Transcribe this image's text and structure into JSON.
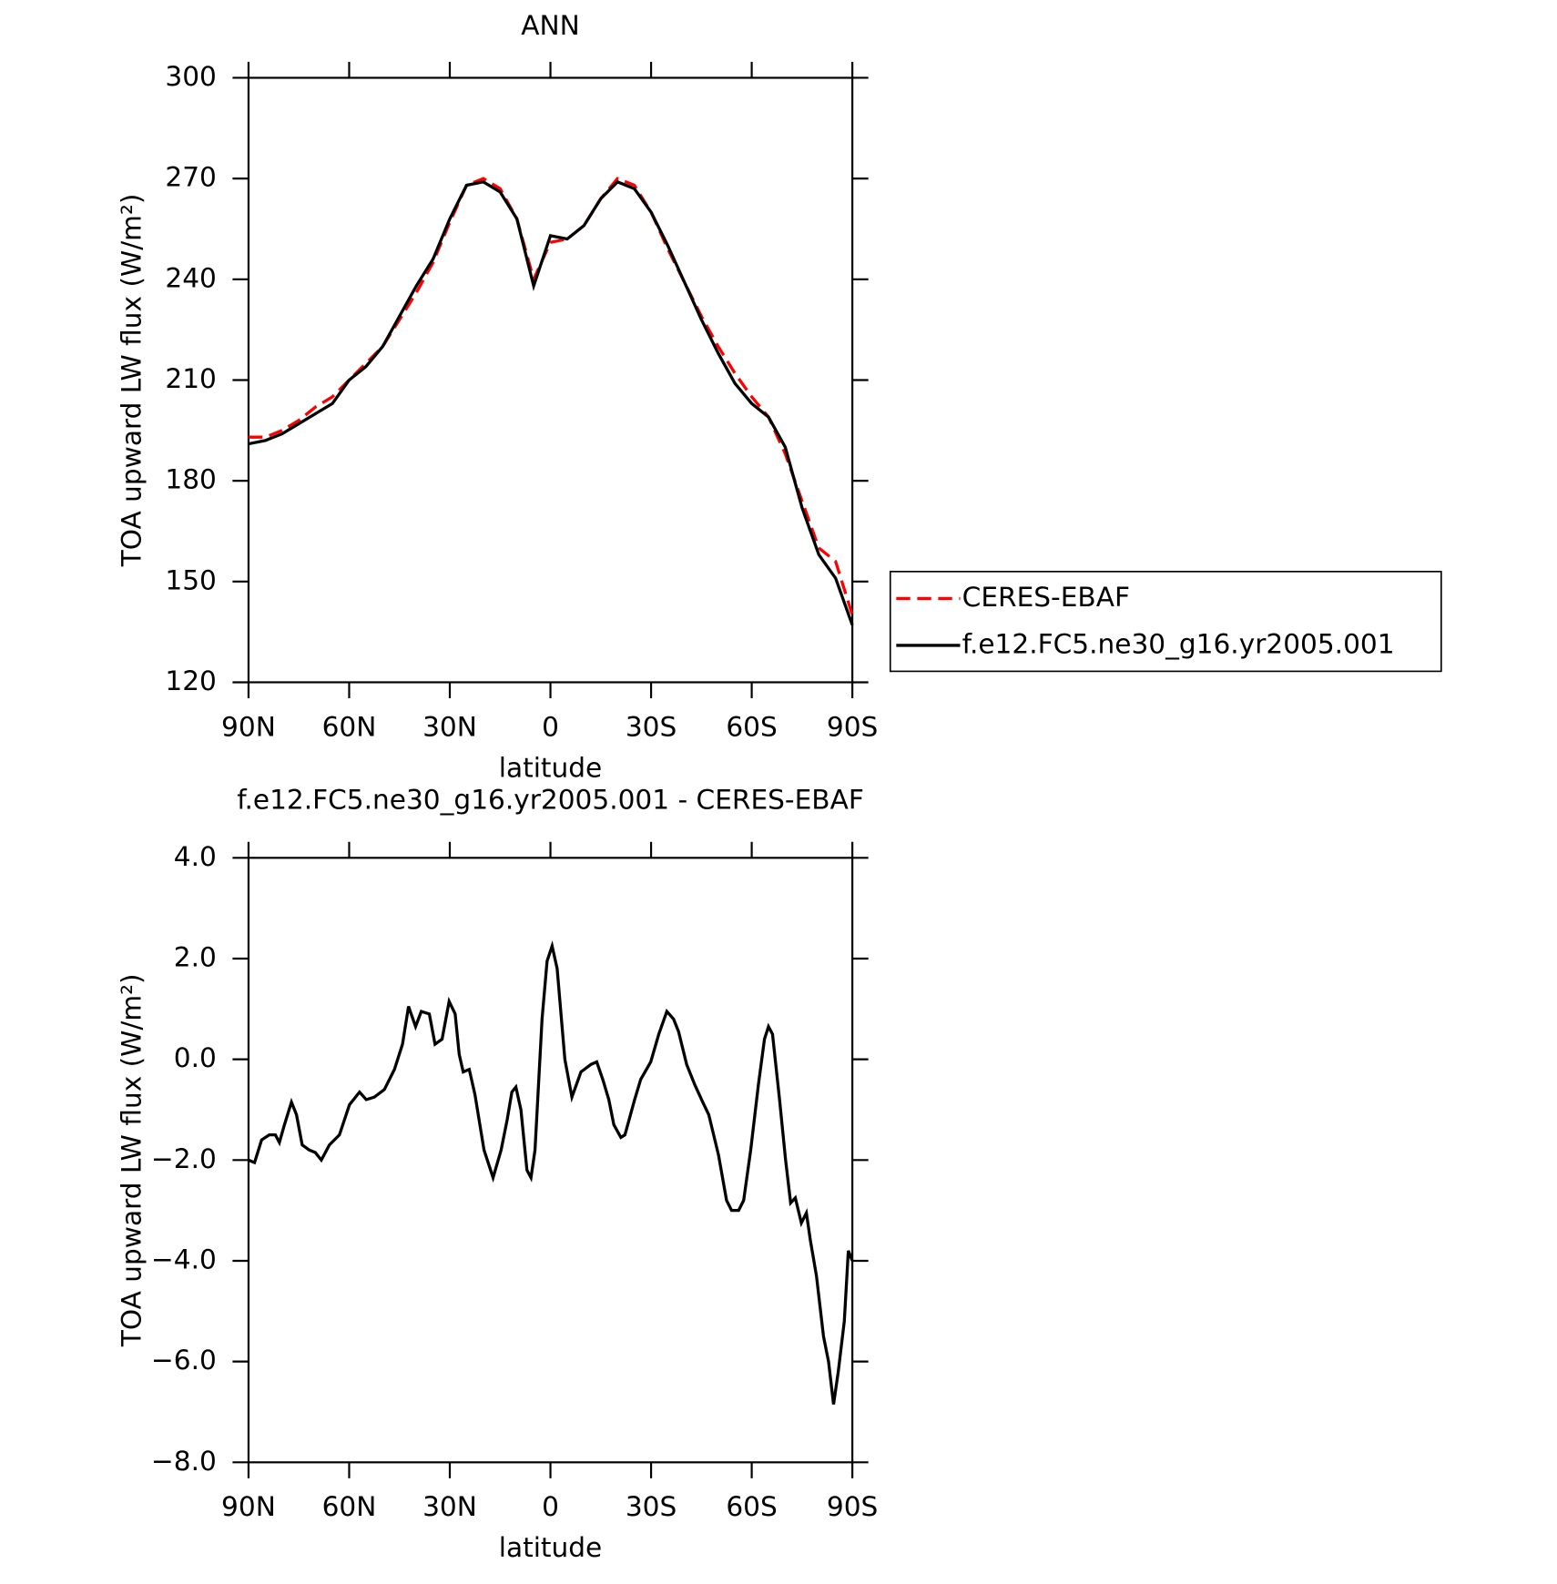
{
  "chart_data": [
    {
      "type": "line",
      "title": "ANN",
      "xlabel": "latitude",
      "ylabel": "TOA upward LW flux (W/m²)",
      "xlim": [
        90,
        -90
      ],
      "ylim": [
        120,
        300
      ],
      "xticks": [
        {
          "value": 90,
          "label": "90N"
        },
        {
          "value": 60,
          "label": "60N"
        },
        {
          "value": 30,
          "label": "30N"
        },
        0,
        {
          "value": -30,
          "label": "30S"
        },
        {
          "value": -60,
          "label": "60S"
        },
        {
          "value": -90,
          "label": "90S"
        }
      ],
      "yticks": [
        120,
        150,
        180,
        210,
        240,
        270,
        300
      ],
      "legend": "right",
      "x": [
        90,
        85,
        80,
        75,
        70,
        65,
        60,
        55,
        50,
        45,
        40,
        35,
        30,
        25,
        20,
        15,
        10,
        5,
        0,
        -5,
        -10,
        -15,
        -20,
        -25,
        -30,
        -35,
        -40,
        -45,
        -50,
        -55,
        -60,
        -65,
        -70,
        -75,
        -80,
        -85,
        -90
      ],
      "series": [
        {
          "name": "CERES-EBAF",
          "color": "#ff0000",
          "dashed": true,
          "values": [
            193,
            193,
            195,
            198,
            202,
            205,
            210,
            215,
            220,
            228,
            236,
            245,
            257,
            268,
            270,
            267,
            258,
            240,
            251,
            252,
            256,
            264,
            270,
            268,
            260,
            249,
            239,
            229,
            220,
            212,
            205,
            199,
            188,
            174,
            160,
            156,
            140
          ]
        },
        {
          "name": "f.e12.FC5.ne30_g16.yr2005.001",
          "color": "#000000",
          "dashed": false,
          "values": [
            191,
            192,
            194,
            197,
            200,
            203,
            210,
            214,
            220,
            229,
            238,
            246,
            258,
            268,
            269,
            266,
            258,
            238,
            253,
            252,
            256,
            264,
            269,
            267,
            260,
            250,
            239,
            228,
            218,
            209,
            203,
            199,
            190,
            172,
            158,
            151,
            137
          ]
        }
      ]
    },
    {
      "type": "line",
      "title": "f.e12.FC5.ne30_g16.yr2005.001 - CERES-EBAF",
      "xlabel": "latitude",
      "ylabel": "TOA upward LW flux (W/m²)",
      "xlim": [
        90,
        -90
      ],
      "ylim": [
        -8,
        4
      ],
      "xticks": [
        {
          "value": 90,
          "label": "90N"
        },
        {
          "value": 60,
          "label": "60N"
        },
        {
          "value": 30,
          "label": "30N"
        },
        0,
        {
          "value": -30,
          "label": "30S"
        },
        {
          "value": -60,
          "label": "60S"
        },
        {
          "value": -90,
          "label": "90S"
        }
      ],
      "yticks": [
        {
          "value": -8,
          "label": "−8.0"
        },
        {
          "value": -6,
          "label": "−6.0"
        },
        {
          "value": -4,
          "label": "−4.0"
        },
        {
          "value": -2,
          "label": "−2.0"
        },
        {
          "value": 0,
          "label": "0.0"
        },
        {
          "value": 2,
          "label": "2.0"
        },
        {
          "value": 4,
          "label": "4.0"
        }
      ],
      "x": [
        90,
        88.2,
        86.1,
        83.8,
        82.0,
        80.8,
        79.3,
        77.2,
        75.7,
        74.0,
        71.9,
        70.1,
        68.3,
        65.9,
        62.9,
        59.9,
        56.9,
        54.9,
        52.5,
        49.5,
        46.5,
        44.1,
        42.3,
        40.2,
        38.5,
        36.1,
        34.4,
        32.3,
        30.2,
        28.4,
        27.2,
        26.0,
        24.2,
        22.5,
        19.8,
        17.1,
        14.7,
        12.9,
        11.5,
        10.3,
        8.8,
        7.0,
        5.8,
        4.6,
        2.5,
        1.0,
        -0.5,
        -2.0,
        -4.3,
        -6.4,
        -9.1,
        -12.1,
        -13.8,
        -15.6,
        -17.4,
        -18.9,
        -21.0,
        -22.2,
        -25.1,
        -26.9,
        -29.9,
        -32.3,
        -34.7,
        -36.7,
        -38.2,
        -40.6,
        -43.0,
        -45.4,
        -47.2,
        -50.1,
        -52.5,
        -54.0,
        -56.1,
        -57.6,
        -59.7,
        -62.0,
        -63.8,
        -65.0,
        -66.2,
        -68.3,
        -70.1,
        -71.6,
        -73.0,
        -74.8,
        -76.3,
        -77.5,
        -79.3,
        -81.4,
        -82.9,
        -84.4,
        -85.8,
        -87.6,
        -88.8,
        -90
      ],
      "series": [
        {
          "name": "f.e12.FC5.ne30_g16.yr2005.001 - CERES-EBAF",
          "color": "#000000",
          "values": [
            -2.0,
            -2.05,
            -1.6,
            -1.5,
            -1.5,
            -1.65,
            -1.3,
            -0.85,
            -1.1,
            -1.7,
            -1.8,
            -1.85,
            -2.0,
            -1.7,
            -1.5,
            -0.9,
            -0.65,
            -0.8,
            -0.75,
            -0.6,
            -0.2,
            0.3,
            1.05,
            0.65,
            0.95,
            0.9,
            0.3,
            0.4,
            1.15,
            0.9,
            0.1,
            -0.25,
            -0.2,
            -0.7,
            -1.8,
            -2.35,
            -1.8,
            -1.2,
            -0.65,
            -0.55,
            -1.0,
            -2.2,
            -2.35,
            -1.8,
            0.8,
            1.95,
            2.25,
            1.8,
            0.0,
            -0.75,
            -0.25,
            -0.1,
            -0.05,
            -0.4,
            -0.8,
            -1.3,
            -1.55,
            -1.5,
            -0.8,
            -0.4,
            -0.05,
            0.5,
            0.95,
            0.8,
            0.55,
            -0.1,
            -0.5,
            -0.85,
            -1.1,
            -1.9,
            -2.8,
            -3.0,
            -3.0,
            -2.8,
            -1.8,
            -0.5,
            0.4,
            0.65,
            0.5,
            -0.8,
            -2.0,
            -2.85,
            -2.75,
            -3.25,
            -3.05,
            -3.6,
            -4.3,
            -5.5,
            -6.0,
            -6.85,
            -6.2,
            -5.2,
            -3.8,
            -4.0
          ]
        }
      ]
    }
  ]
}
